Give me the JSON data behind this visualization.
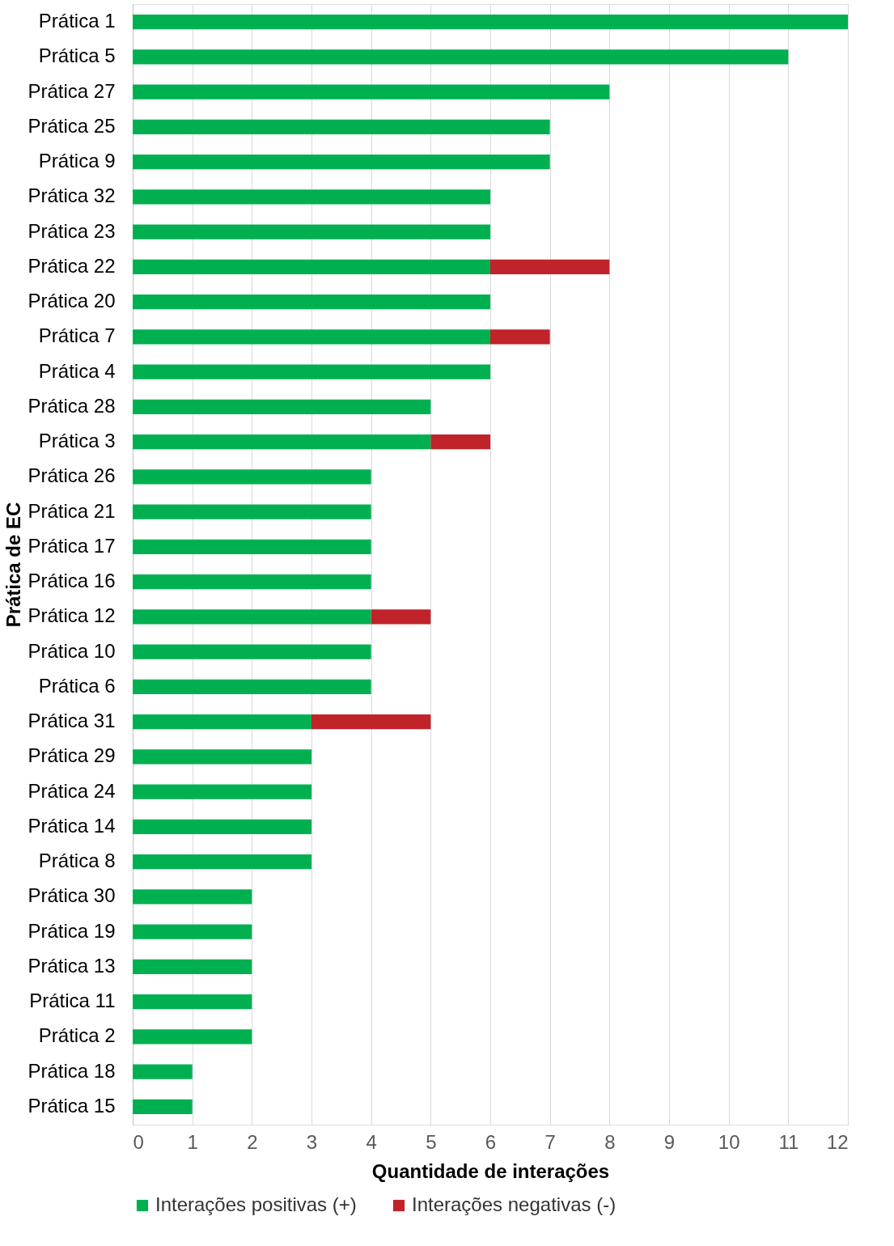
{
  "chart_data": {
    "type": "bar",
    "orientation": "horizontal",
    "stacked": true,
    "xlabel": "Quantidade de interações",
    "ylabel": "Prática de EC",
    "categories": [
      "Prática 1",
      "Prática 5",
      "Prática 27",
      "Prática 25",
      "Prática 9",
      "Prática 32",
      "Prática 23",
      "Prática 22",
      "Prática 20",
      "Prática 7",
      "Prática 4",
      "Prática 28",
      "Prática 3",
      "Prática 26",
      "Prática 21",
      "Prática 17",
      "Prática 16",
      "Prática 12",
      "Prática 10",
      "Prática 6",
      "Prática 31",
      "Prática 29",
      "Prática 24",
      "Prática 14",
      "Prática 8",
      "Prática 30",
      "Prática 19",
      "Prática 13",
      "Prática 11",
      "Prática 2",
      "Prática 18",
      "Prática 15"
    ],
    "series": [
      {
        "name": "Interações positivas (+)",
        "color": "#00b050",
        "values": [
          12,
          11,
          8,
          7,
          7,
          6,
          6,
          6,
          6,
          6,
          6,
          5,
          5,
          4,
          4,
          4,
          4,
          4,
          4,
          4,
          3,
          3,
          3,
          3,
          3,
          2,
          2,
          2,
          2,
          2,
          1,
          1
        ]
      },
      {
        "name": "Interações negativas (-)",
        "color": "#c0232a",
        "values": [
          null,
          null,
          null,
          null,
          null,
          null,
          null,
          2,
          null,
          1,
          null,
          null,
          1,
          null,
          null,
          null,
          null,
          1,
          null,
          null,
          2,
          null,
          null,
          null,
          null,
          null,
          null,
          null,
          null,
          null,
          null,
          null
        ]
      }
    ],
    "xlim": [
      0,
      12
    ],
    "xticks": [
      0,
      1,
      2,
      3,
      4,
      5,
      6,
      7,
      8,
      9,
      10,
      11,
      12
    ],
    "grid": "x",
    "legend": "bottom"
  }
}
